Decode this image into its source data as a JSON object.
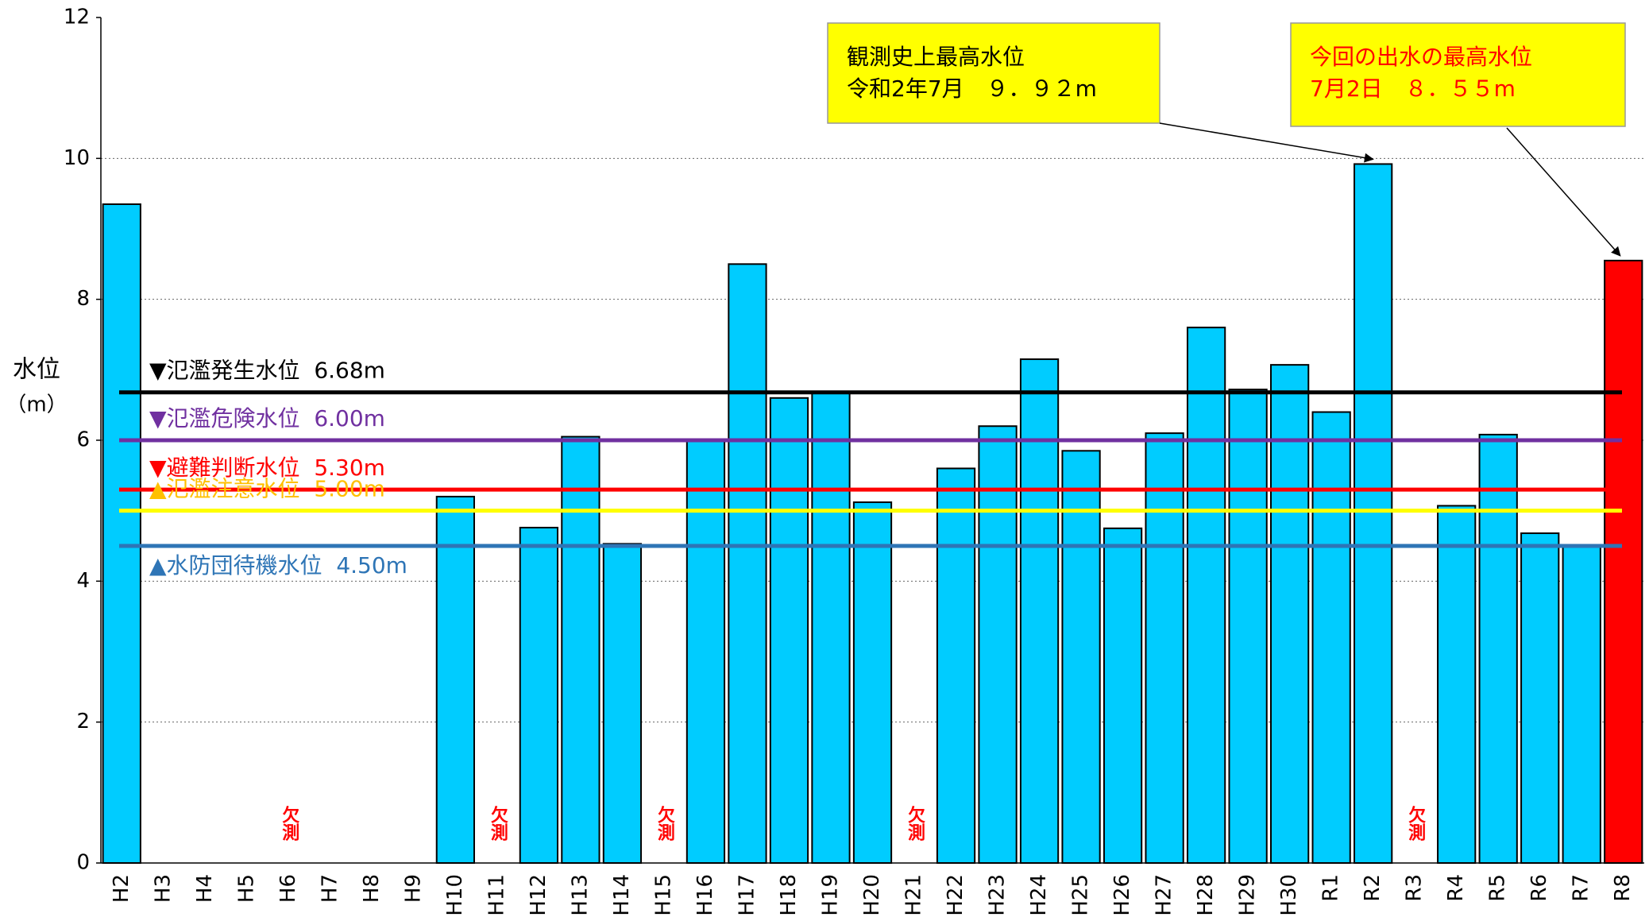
{
  "chart_data": {
    "type": "bar",
    "ylabel": [
      "水位",
      "（m）"
    ],
    "categories": [
      "H2",
      "H3",
      "H4",
      "H5",
      "H6",
      "H7",
      "H8",
      "H9",
      "H10",
      "H11",
      "H12",
      "H13",
      "H14",
      "H15",
      "H16",
      "H17",
      "H18",
      "H19",
      "H20",
      "H21",
      "H22",
      "H23",
      "H24",
      "H25",
      "H26",
      "H27",
      "H28",
      "H29",
      "H30",
      "R1",
      "R2",
      "R3",
      "R4",
      "R5",
      "R6",
      "R7",
      "R8"
    ],
    "values": [
      9.35,
      null,
      null,
      null,
      null,
      null,
      null,
      null,
      5.2,
      null,
      4.76,
      6.05,
      4.53,
      null,
      6.0,
      8.5,
      6.6,
      6.68,
      5.12,
      null,
      5.6,
      6.2,
      7.15,
      5.85,
      4.75,
      6.1,
      7.6,
      6.72,
      7.07,
      6.4,
      9.92,
      null,
      5.07,
      6.08,
      4.68,
      4.5,
      8.55
    ],
    "color": "#00ccff",
    "highlight_category": "R8",
    "highlight_color": "#ff0000",
    "ylim": [
      0,
      12
    ],
    "yticks": [
      0,
      2,
      4,
      6,
      8,
      10,
      12
    ],
    "grid": true,
    "missing_labels": [
      {
        "category": "H6",
        "text": "欠測"
      },
      {
        "category": "H11",
        "text": "欠測"
      },
      {
        "category": "H15",
        "text": "欠測"
      },
      {
        "category": "H21",
        "text": "欠測"
      },
      {
        "category": "R3",
        "text": "欠測"
      }
    ],
    "thresholds": [
      {
        "label": "▼氾濫発生水位  6.68m",
        "value": 6.68,
        "color": "#000000",
        "label_color": "#000000"
      },
      {
        "label": "▼氾濫危険水位  6.00m",
        "value": 6.0,
        "color": "#7030a0",
        "label_color": "#7030a0"
      },
      {
        "label": "▼避難判断水位  5.30m",
        "value": 5.3,
        "color": "#ff0000",
        "label_color": "#ff0000"
      },
      {
        "label": "▲氾濫注意水位  5.00m",
        "value": 5.0,
        "color": "#ffff00",
        "label_color": "#ffc000"
      },
      {
        "label": "▲水防団待機水位  4.50m",
        "value": 4.5,
        "color": "#2e75b6",
        "label_color": "#2e75b6"
      }
    ],
    "annotations": [
      {
        "lines": [
          "観測史上最高水位",
          "令和2年7月　９．９２m"
        ],
        "target": "R2",
        "color": "#000000"
      },
      {
        "lines": [
          "今回の出水の最高水位",
          "7月2日　８．５５m"
        ],
        "target": "R8",
        "color": "#ff0000"
      }
    ]
  }
}
